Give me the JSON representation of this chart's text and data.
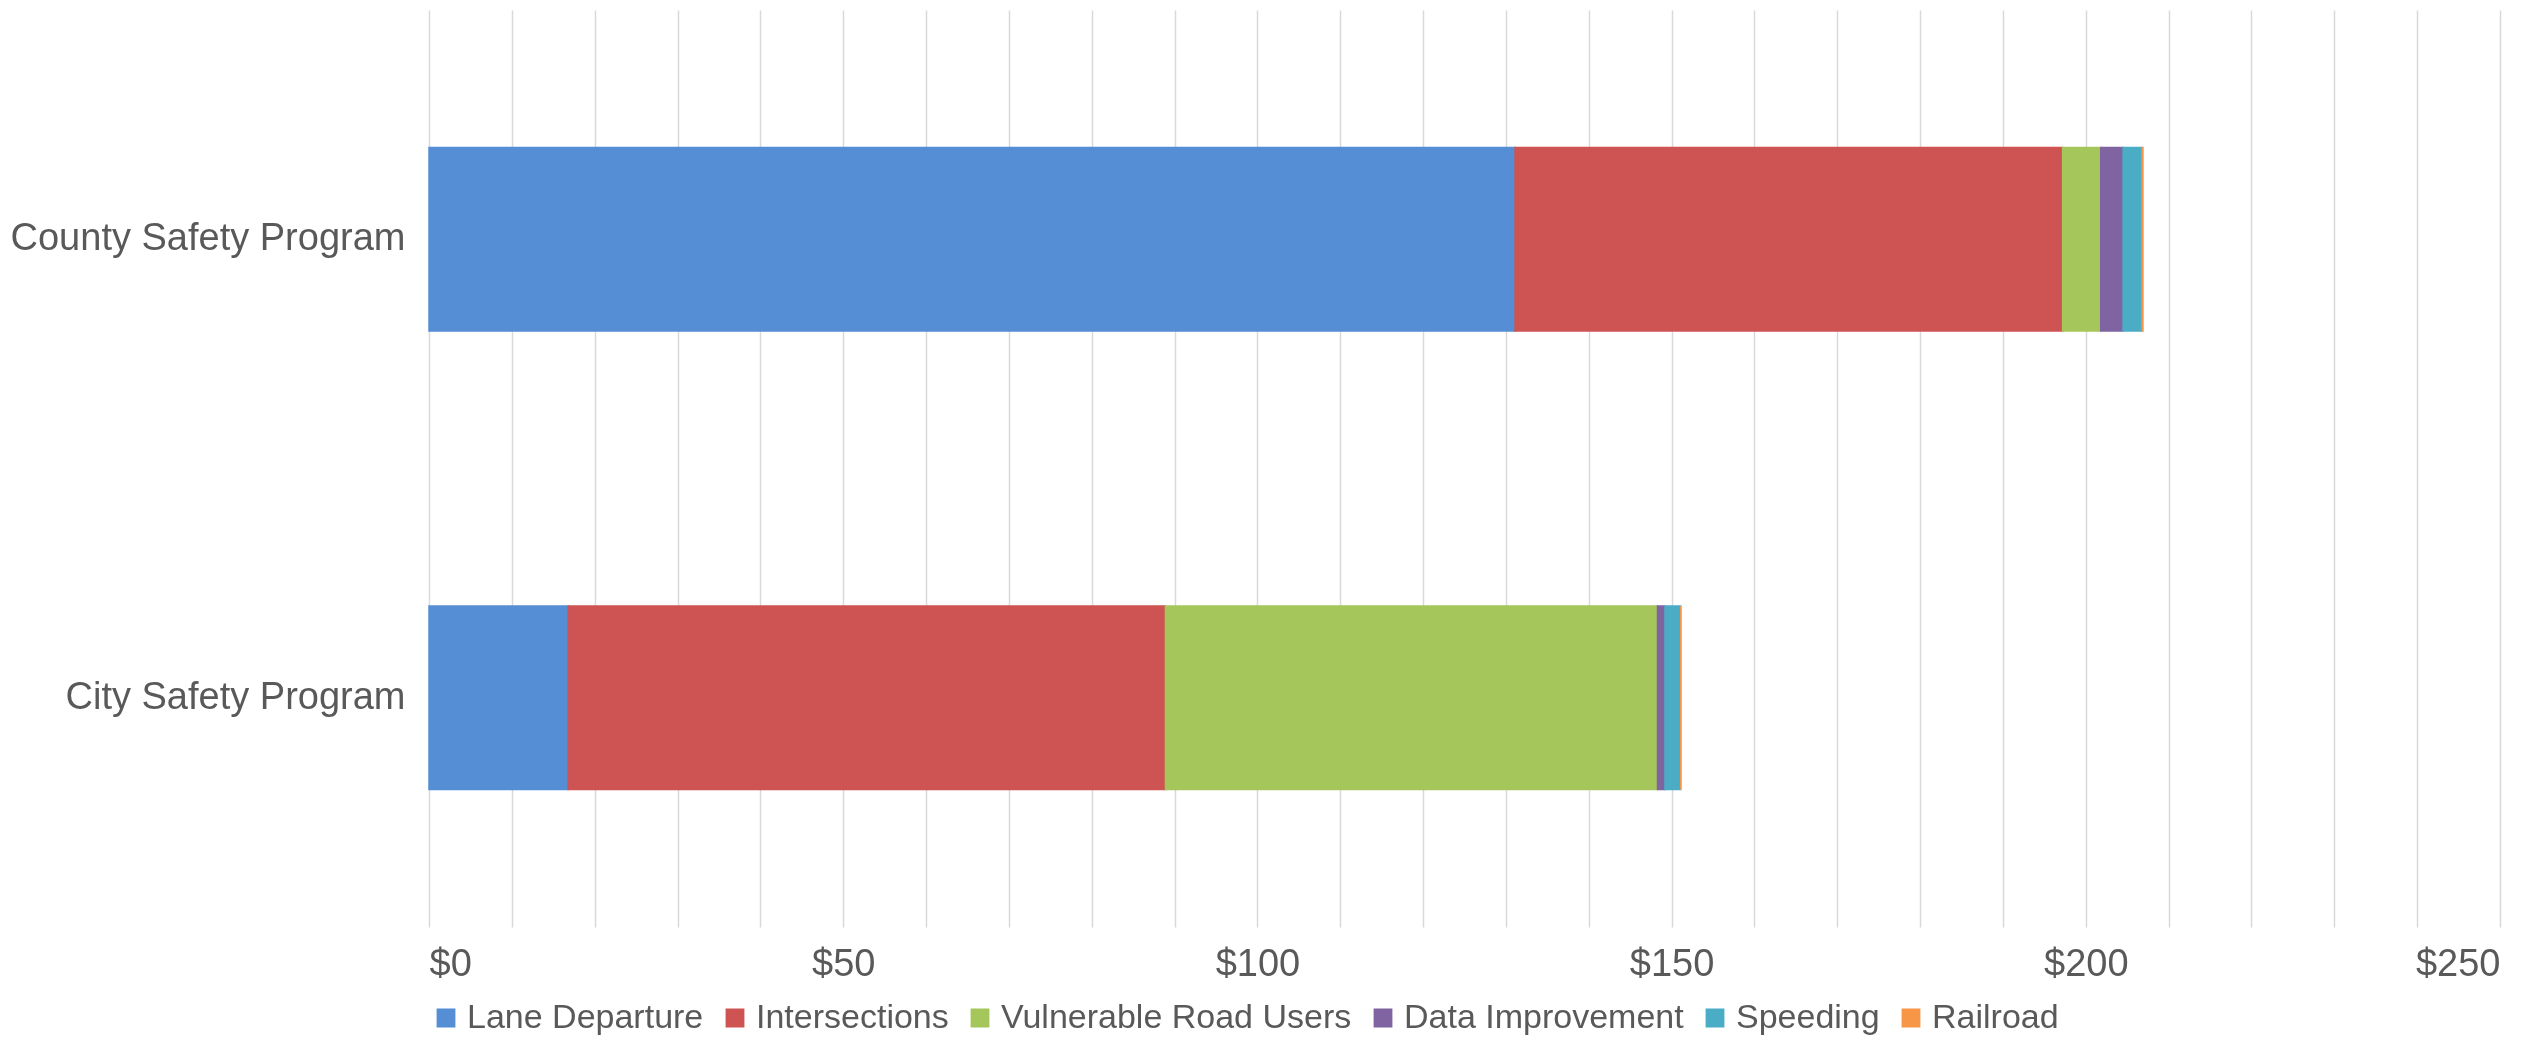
{
  "chart_data": {
    "type": "bar",
    "orientation": "horizontal",
    "stacked": true,
    "categories": [
      "County Safety Program",
      "City Safety Program"
    ],
    "series": [
      {
        "name": "Lane Departure",
        "color": "#558ed5",
        "values": [
          131.1,
          16.8
        ]
      },
      {
        "name": "Intersections",
        "color": "#cd5452",
        "values": [
          66.1,
          72.1
        ]
      },
      {
        "name": "Vulnerable Road Users",
        "color": "#a5c65a",
        "values": [
          4.6,
          59.4
        ]
      },
      {
        "name": "Data Improvement",
        "color": "#8064a2",
        "values": [
          2.7,
          0.9
        ]
      },
      {
        "name": "Speeding",
        "color": "#4bacc6",
        "values": [
          2.3,
          1.9
        ]
      },
      {
        "name": "Railroad",
        "color": "#f79646",
        "values": [
          0.1,
          0
        ]
      }
    ],
    "xlim": [
      0,
      250
    ],
    "xticks": [
      {
        "value": 0,
        "label": "$0"
      },
      {
        "value": 10,
        "label": null
      },
      {
        "value": 20,
        "label": null
      },
      {
        "value": 30,
        "label": null
      },
      {
        "value": 40,
        "label": null
      },
      {
        "value": 50,
        "label": "$50"
      },
      {
        "value": 60,
        "label": null
      },
      {
        "value": 70,
        "label": null
      },
      {
        "value": 80,
        "label": null
      },
      {
        "value": 90,
        "label": null
      },
      {
        "value": 100,
        "label": "$100"
      },
      {
        "value": 110,
        "label": null
      },
      {
        "value": 120,
        "label": null
      },
      {
        "value": 130,
        "label": null
      },
      {
        "value": 140,
        "label": null
      },
      {
        "value": 150,
        "label": "$150"
      },
      {
        "value": 160,
        "label": null
      },
      {
        "value": 170,
        "label": null
      },
      {
        "value": 180,
        "label": null
      },
      {
        "value": 190,
        "label": null
      },
      {
        "value": 200,
        "label": "$200"
      },
      {
        "value": 210,
        "label": null
      },
      {
        "value": 220,
        "label": null
      },
      {
        "value": 230,
        "label": null
      },
      {
        "value": 240,
        "label": null
      },
      {
        "value": 250,
        "label": "$250"
      }
    ],
    "grid": "x",
    "legend": "bottom"
  }
}
